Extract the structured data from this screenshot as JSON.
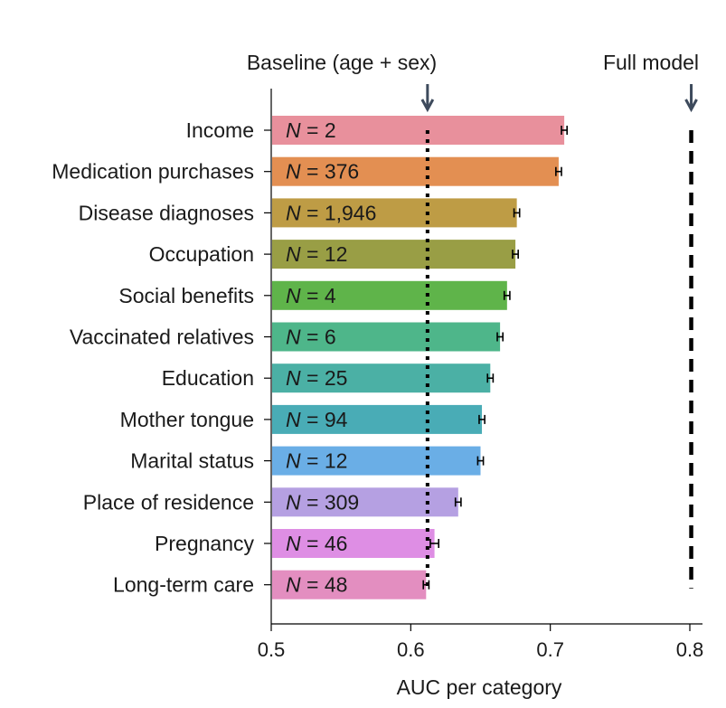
{
  "chart_data": {
    "type": "bar",
    "orientation": "horizontal",
    "xlabel": "AUC per category",
    "xlim": [
      0.5,
      0.8
    ],
    "xticks": [
      "0.5",
      "0.6",
      "0.7",
      "0.8"
    ],
    "grid": false,
    "categories": [
      "Income",
      "Medication purchases",
      "Disease diagnoses",
      "Occupation",
      "Social benefits",
      "Vaccinated relatives",
      "Education",
      "Mother tongue",
      "Marital status",
      "Place of residence",
      "Pregnancy",
      "Long-term care"
    ],
    "values": [
      0.71,
      0.706,
      0.676,
      0.675,
      0.669,
      0.664,
      0.657,
      0.651,
      0.65,
      0.634,
      0.617,
      0.611
    ],
    "errors": [
      0.002,
      0.002,
      0.002,
      0.002,
      0.002,
      0.002,
      0.002,
      0.002,
      0.002,
      0.002,
      0.003,
      0.002
    ],
    "n_prefix": "N",
    "n_equals": " = ",
    "n_values": [
      "2",
      "376",
      "1,946",
      "12",
      "4",
      "6",
      "25",
      "94",
      "12",
      "309",
      "46",
      "48"
    ],
    "colors": [
      "#e8909c",
      "#e38f52",
      "#be9c45",
      "#999e45",
      "#5fb44a",
      "#4eb68a",
      "#4bb0a5",
      "#49acb6",
      "#6aaee6",
      "#b5a0e2",
      "#de8ee4",
      "#e38ec0"
    ],
    "reference_lines": [
      {
        "label": "Baseline (age + sex)",
        "value": 0.612,
        "style": "dotted",
        "color": "#000000"
      },
      {
        "label": "Full model",
        "value": 0.801,
        "style": "dashed",
        "color": "#000000"
      }
    ],
    "arrow_color": "#3d4a5c"
  }
}
